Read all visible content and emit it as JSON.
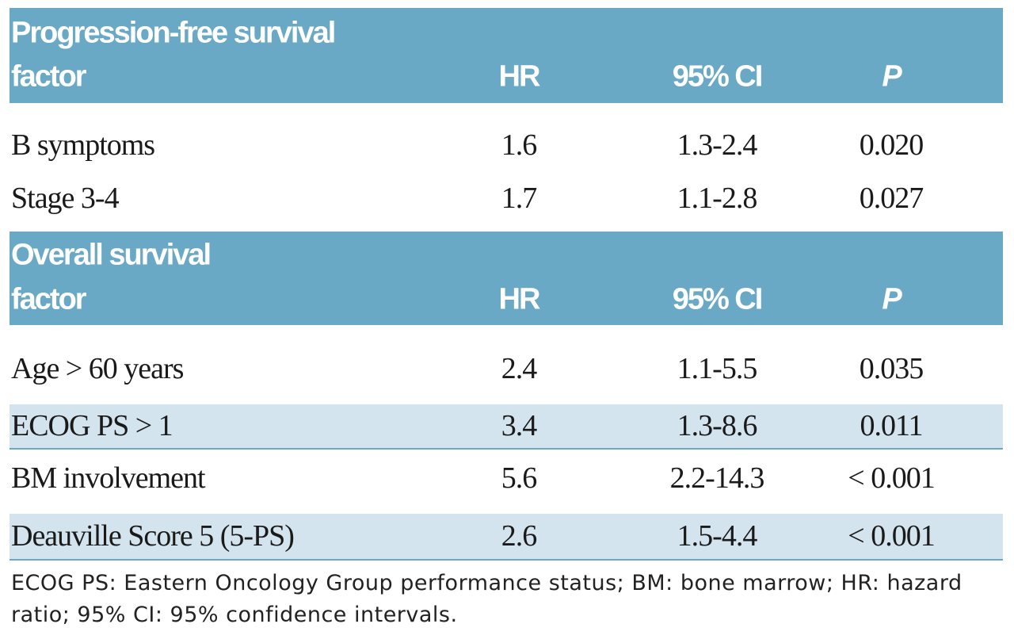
{
  "sections": [
    {
      "title": "Progression-free survival",
      "columns": [
        "factor",
        "HR",
        "95% CI",
        "P"
      ],
      "rows": [
        [
          "B symptoms",
          "1.6",
          "1.3-2.4",
          "0.020"
        ],
        [
          "Stage 3-4",
          "1.7",
          "1.1-2.8",
          "0.027"
        ]
      ]
    },
    {
      "title": "Overall survival",
      "columns": [
        "factor",
        "HR",
        "95% CI",
        "P"
      ],
      "rows": [
        [
          "Age > 60 years",
          "2.4",
          "1.1-5.5",
          "0.035"
        ],
        [
          "ECOG PS > 1",
          "3.4",
          "1.3-8.6",
          "0.011"
        ],
        [
          "BM involvement",
          "5.6",
          "2.2-14.3",
          "< 0.001"
        ],
        [
          "Deauville Score 5 (5-PS)",
          "2.6",
          "1.5-4.4",
          "< 0.001"
        ]
      ]
    }
  ],
  "footnote": "ECOG PS: Eastern Oncology Group performance status; BM: bone marrow; HR: hazard ratio; 95% CI: 95% confidence intervals."
}
